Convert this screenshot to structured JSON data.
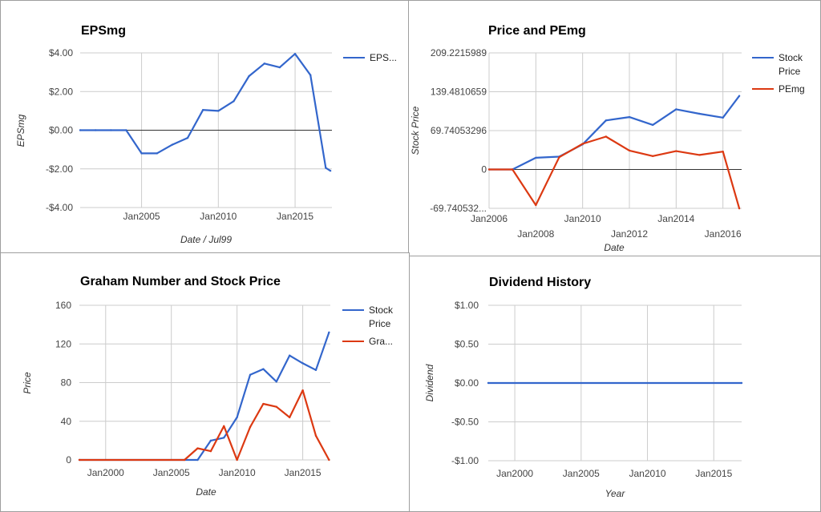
{
  "colors": {
    "blue": "#3366cc",
    "red": "#dc3912",
    "grid": "#cccccc",
    "zero": "#333333"
  },
  "chart_data": [
    {
      "id": "eps",
      "type": "line",
      "title": "EPSmg",
      "xlabel": "Date / Jul99",
      "ylabel": "EPSmg",
      "ylim": [
        -4,
        4
      ],
      "xlim": [
        2001,
        2017.4
      ],
      "y_ticks": [
        4,
        2,
        0,
        -2,
        -4
      ],
      "y_tick_labels": [
        "$4.00",
        "$2.00",
        "$0.00",
        "-$2.00",
        "-$4.00"
      ],
      "x_ticks": [
        2005,
        2010,
        2015
      ],
      "x_tick_labels": [
        "Jan2005",
        "Jan2010",
        "Jan2015"
      ],
      "grid": true,
      "legend_position": "right",
      "series": [
        {
          "name": "EPS...",
          "color": "#3366cc",
          "x": [
            2001,
            2002,
            2003,
            2004,
            2005,
            2006,
            2007,
            2008,
            2009,
            2010,
            2011,
            2012,
            2013,
            2014,
            2015,
            2016,
            2017,
            2017.3
          ],
          "y": [
            0,
            0,
            0,
            0,
            -1.2,
            -1.2,
            -0.75,
            -0.4,
            1.05,
            1.0,
            1.5,
            2.8,
            3.45,
            3.25,
            3.95,
            2.85,
            -1.95,
            -2.1
          ]
        }
      ]
    },
    {
      "id": "price-pe",
      "type": "line",
      "title": "Price and PEmg",
      "xlabel": "Date",
      "ylabel": "Stock Price",
      "ylim": [
        -69.740532,
        209.2215989
      ],
      "xlim": [
        2006,
        2016.8
      ],
      "y_ticks": [
        209.2215989,
        139.4810659,
        69.74053296,
        0,
        -69.740532
      ],
      "y_tick_labels": [
        "209.2215989",
        "139.4810659",
        "69.74053296",
        "0",
        "-69.740532..."
      ],
      "x_ticks": [
        2006,
        2008,
        2010,
        2012,
        2014,
        2016
      ],
      "x_tick_labels": [
        "Jan2006",
        "Jan2008",
        "Jan2010",
        "Jan2012",
        "Jan2014",
        "Jan2016"
      ],
      "grid": true,
      "legend_position": "right",
      "series": [
        {
          "name": "Stock Price",
          "color": "#3366cc",
          "x": [
            2006,
            2007,
            2008,
            2009,
            2010,
            2011,
            2012,
            2013,
            2014,
            2015,
            2016,
            2016.7
          ],
          "y": [
            0,
            0,
            21,
            23,
            45,
            88,
            94,
            80,
            108,
            100,
            93,
            132
          ]
        },
        {
          "name": "PEmg",
          "color": "#dc3912",
          "x": [
            2006,
            2007,
            2008,
            2009,
            2010,
            2011,
            2012,
            2013,
            2014,
            2015,
            2016,
            2016.7
          ],
          "y": [
            0,
            0,
            -64,
            22,
            46,
            59,
            34,
            24,
            33,
            26,
            32,
            -70
          ]
        }
      ]
    },
    {
      "id": "graham",
      "type": "line",
      "title": "Graham Number and Stock Price",
      "xlabel": "Date",
      "ylabel": "Price",
      "ylim": [
        0,
        160
      ],
      "xlim": [
        1998,
        2017.1
      ],
      "y_ticks": [
        160,
        120,
        80,
        40,
        0
      ],
      "y_tick_labels": [
        "160",
        "120",
        "80",
        "40",
        "0"
      ],
      "x_ticks": [
        2000,
        2005,
        2010,
        2015
      ],
      "x_tick_labels": [
        "Jan2000",
        "Jan2005",
        "Jan2010",
        "Jan2015"
      ],
      "grid": true,
      "legend_position": "right",
      "series": [
        {
          "name": "Stock Price",
          "color": "#3366cc",
          "x": [
            1998,
            2007,
            2008,
            2009,
            2010,
            2011,
            2012,
            2013,
            2014,
            2015,
            2016,
            2017
          ],
          "y": [
            0,
            0,
            20,
            23,
            44,
            88,
            94,
            81,
            108,
            100,
            93,
            132
          ]
        },
        {
          "name": "Gra...",
          "color": "#dc3912",
          "x": [
            1998,
            2006,
            2007,
            2008,
            2009,
            2010,
            2011,
            2012,
            2013,
            2014,
            2015,
            2016,
            2017
          ],
          "y": [
            0,
            0,
            12,
            9,
            35,
            0,
            34,
            58,
            55,
            44,
            72,
            25,
            0
          ]
        }
      ]
    },
    {
      "id": "dividend",
      "type": "line",
      "title": "Dividend History",
      "xlabel": "Year",
      "ylabel": "Dividend",
      "ylim": [
        -1,
        1
      ],
      "xlim": [
        1998,
        2017.1
      ],
      "y_ticks": [
        1,
        0.5,
        0,
        -0.5,
        -1
      ],
      "y_tick_labels": [
        "$1.00",
        "$0.50",
        "$0.00",
        "-$0.50",
        "-$1.00"
      ],
      "x_ticks": [
        2000,
        2005,
        2010,
        2015
      ],
      "x_tick_labels": [
        "Jan2000",
        "Jan2005",
        "Jan2010",
        "Jan2015"
      ],
      "grid": true,
      "legend_position": "none",
      "series": [
        {
          "name": "",
          "color": "#3366cc",
          "x": [
            1998,
            2017.1
          ],
          "y": [
            0,
            0
          ]
        }
      ]
    }
  ]
}
